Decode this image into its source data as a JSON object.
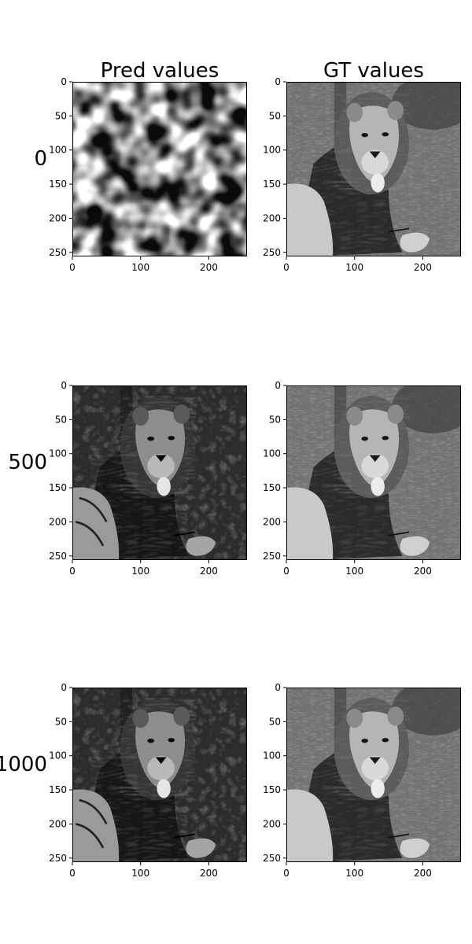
{
  "chart_data": {
    "type": "heatmap",
    "columns": [
      "Pred values",
      "GT values"
    ],
    "rows": [
      "0",
      "500",
      "1000"
    ],
    "xlim": [
      0,
      256
    ],
    "ylim": [
      256,
      0
    ],
    "xticks": [
      0,
      100,
      200
    ],
    "yticks": [
      0,
      50,
      100,
      150,
      200,
      250
    ],
    "colormap": "gray",
    "panels": [
      {
        "row": "0",
        "column": "Pred values",
        "content": "smooth random noise"
      },
      {
        "row": "0",
        "column": "GT values",
        "content": "lion"
      },
      {
        "row": "500",
        "column": "Pred values",
        "content": "lion"
      },
      {
        "row": "500",
        "column": "GT values",
        "content": "lion"
      },
      {
        "row": "1000",
        "column": "Pred values",
        "content": "lion"
      },
      {
        "row": "1000",
        "column": "GT values",
        "content": "lion"
      }
    ]
  },
  "colors": {
    "background": "#ffffff",
    "axis": "#000000"
  }
}
